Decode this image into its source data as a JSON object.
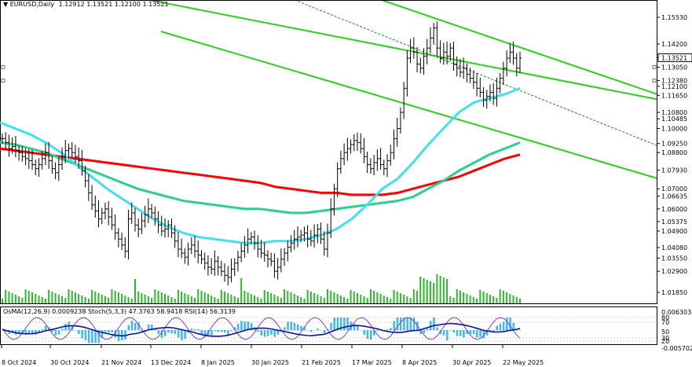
{
  "chart_header": {
    "symbol_label": "EURUSD,Daily",
    "ohlc_text": "1.12912 1.13521 1.12100 1.13521"
  },
  "indicator_header": {
    "text": "OsMA(12,26,9) 0.0009238  Stoch(5,3,3) 47.3763 58.9418  RSI(14) 56.3139"
  },
  "chart_data": {
    "type": "line",
    "price_axis_ticks": [
      "1.15530",
      "1.14200",
      "1.13521",
      "1.13050",
      "1.12380",
      "1.12100",
      "1.11650",
      "1.10800",
      "1.10485",
      "1.10000",
      "1.09250",
      "1.08800",
      "1.07930",
      "1.07000",
      "1.06635",
      "1.06000",
      "1.05375",
      "1.04900",
      "1.04080",
      "1.03550",
      "1.02900",
      "1.01850"
    ],
    "highlighted_price": "1.13521",
    "indicator_axis_ticks": [
      "0.0063032",
      "80",
      "70",
      "50",
      "30",
      "20",
      "-0.0057025"
    ],
    "x_tick_labels": [
      "8 Oct 2024",
      "30 Oct 2024",
      "21 Nov 2024",
      "13 Dec 2024",
      "8 Jan 2025",
      "30 Jan 2025",
      "21 Feb 2025",
      "17 Mar 2025",
      "8 Apr 2025",
      "30 Apr 2025",
      "22 May 2025"
    ],
    "close_series": [
      1.095,
      1.093,
      1.09,
      1.091,
      1.089,
      1.088,
      1.086,
      1.085,
      1.084,
      1.082,
      1.08,
      1.082,
      1.085,
      1.088,
      1.084,
      1.08,
      1.078,
      1.082,
      1.086,
      1.089,
      1.09,
      1.088,
      1.086,
      1.084,
      1.079,
      1.074,
      1.068,
      1.062,
      1.059,
      1.055,
      1.058,
      1.06,
      1.056,
      1.052,
      1.048,
      1.045,
      1.042,
      1.039,
      1.055,
      1.058,
      1.052,
      1.05,
      1.054,
      1.057,
      1.06,
      1.058,
      1.055,
      1.052,
      1.049,
      1.05,
      1.052,
      1.048,
      1.044,
      1.04,
      1.038,
      1.036,
      1.04,
      1.042,
      1.039,
      1.037,
      1.035,
      1.033,
      1.031,
      1.03,
      1.034,
      1.031,
      1.029,
      1.027,
      1.026,
      1.03,
      1.033,
      1.036,
      1.039,
      1.042,
      1.045,
      1.046,
      1.043,
      1.04,
      1.038,
      1.037,
      1.035,
      1.034,
      1.029,
      1.031,
      1.035,
      1.038,
      1.041,
      1.043,
      1.045,
      1.046,
      1.047,
      1.048,
      1.045,
      1.044,
      1.047,
      1.05,
      1.045,
      1.04,
      1.048,
      1.06,
      1.07,
      1.08,
      1.085,
      1.088,
      1.09,
      1.092,
      1.094,
      1.093,
      1.09,
      1.086,
      1.082,
      1.08,
      1.083,
      1.085,
      1.082,
      1.08,
      1.084,
      1.088,
      1.095,
      1.1,
      1.108,
      1.12,
      1.135,
      1.14,
      1.138,
      1.132,
      1.13,
      1.136,
      1.14,
      1.145,
      1.15,
      1.14,
      1.135,
      1.138,
      1.136,
      1.14,
      1.132,
      1.13,
      1.128,
      1.13,
      1.127,
      1.125,
      1.123,
      1.12,
      1.118,
      1.114,
      1.116,
      1.118,
      1.115,
      1.12,
      1.125,
      1.13,
      1.135,
      1.138,
      1.135,
      1.13,
      1.135
    ],
    "moving_averages": [
      {
        "color": "#ff0000",
        "values": [
          1.09,
          1.089,
          1.088,
          1.087,
          1.086,
          1.085,
          1.084,
          1.083,
          1.082,
          1.081,
          1.08,
          1.079,
          1.078,
          1.077,
          1.076,
          1.075,
          1.074,
          1.073,
          1.071,
          1.07,
          1.069,
          1.068,
          1.068,
          1.067,
          1.067,
          1.067,
          1.068,
          1.07,
          1.072,
          1.074,
          1.076,
          1.079,
          1.082,
          1.085,
          1.087
        ]
      },
      {
        "color": "#2ad18c",
        "values": [
          1.093,
          1.092,
          1.09,
          1.088,
          1.085,
          1.082,
          1.079,
          1.076,
          1.073,
          1.07,
          1.068,
          1.066,
          1.064,
          1.063,
          1.062,
          1.061,
          1.06,
          1.06,
          1.059,
          1.058,
          1.058,
          1.059,
          1.06,
          1.061,
          1.062,
          1.063,
          1.064,
          1.066,
          1.07,
          1.074,
          1.079,
          1.083,
          1.087,
          1.09,
          1.093
        ]
      },
      {
        "color": "#3fe1f0",
        "values": [
          1.103,
          1.1,
          1.097,
          1.093,
          1.088,
          1.082,
          1.076,
          1.07,
          1.065,
          1.06,
          1.055,
          1.051,
          1.048,
          1.046,
          1.045,
          1.044,
          1.043,
          1.043,
          1.044,
          1.044,
          1.045,
          1.047,
          1.05,
          1.055,
          1.062,
          1.07,
          1.075,
          1.083,
          1.092,
          1.1,
          1.108,
          1.113,
          1.115,
          1.117,
          1.12
        ]
      }
    ],
    "trend_lines": [
      {
        "color": "#29d219",
        "points": [
          [
            180,
            -2
          ],
          [
            881,
            135
          ]
        ]
      },
      {
        "color": "#29d219",
        "points": [
          [
            480,
            -2
          ],
          [
            881,
            135
          ]
        ]
      },
      {
        "color": "#29d219",
        "points": [
          [
            205,
            40
          ],
          [
            881,
            240
          ]
        ]
      }
    ]
  }
}
